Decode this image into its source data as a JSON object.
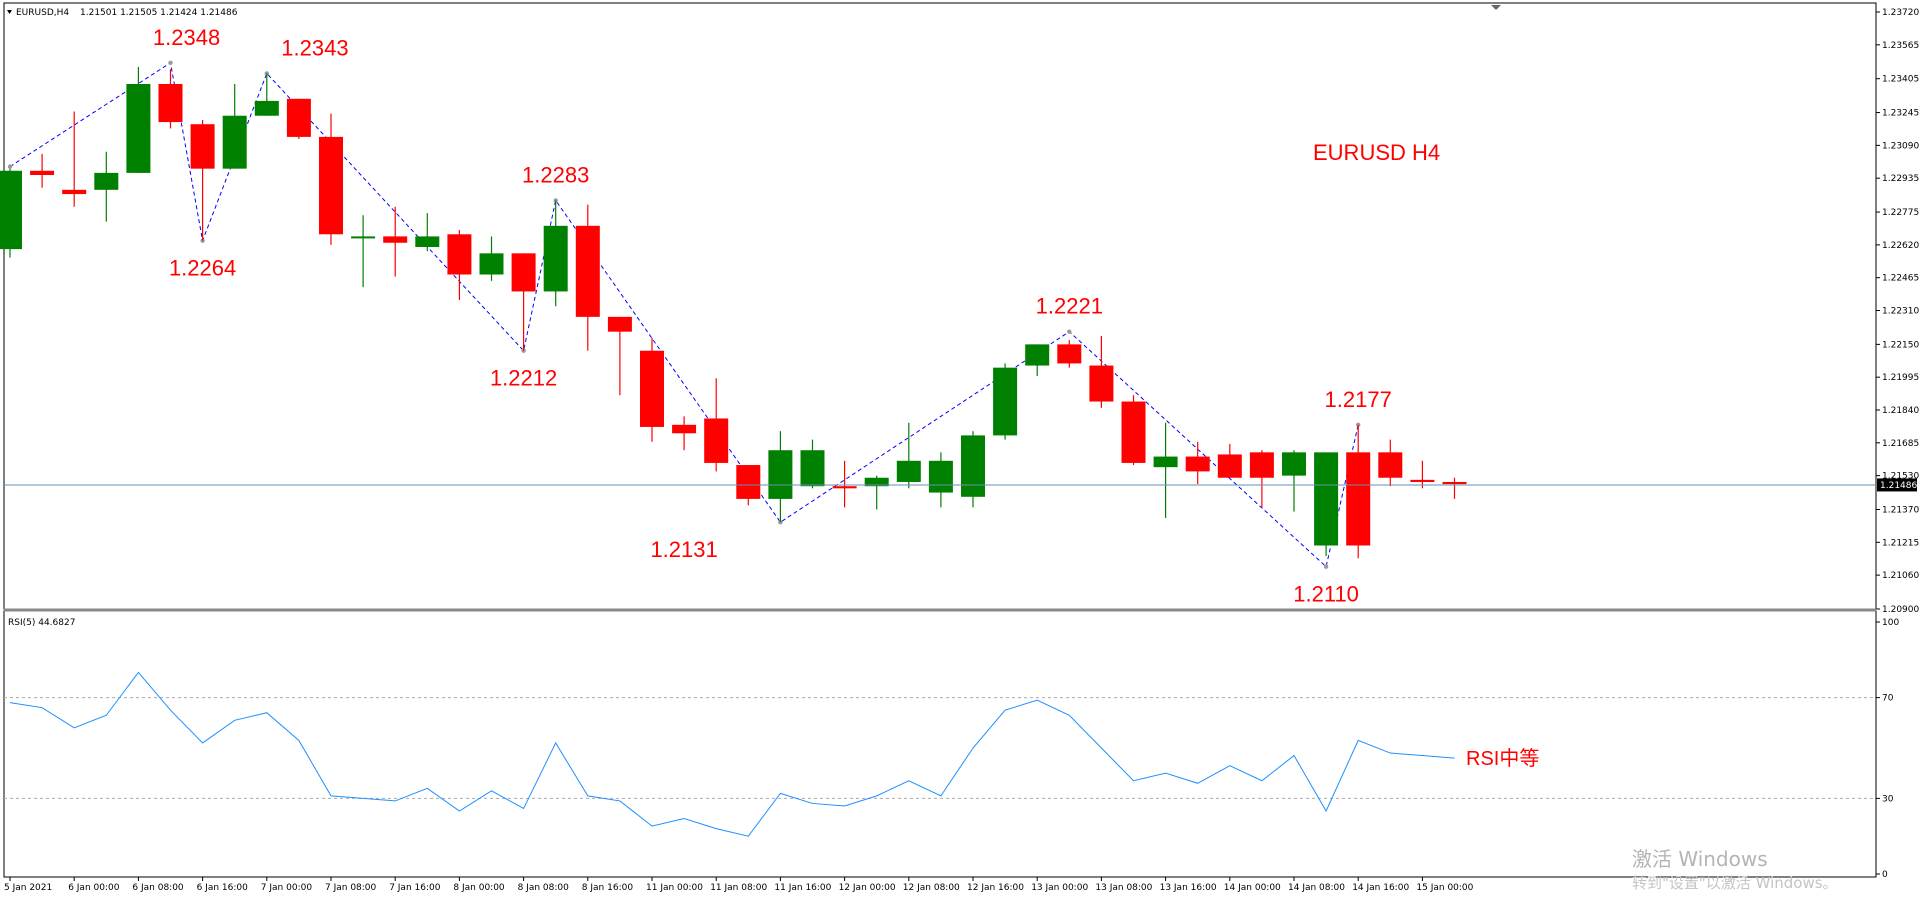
{
  "header": {
    "symbol": "EURUSD,H4",
    "ohlc": "1.21501 1.21505 1.21424 1.21486"
  },
  "price_tag": "1.21486",
  "rsi_header": "RSI(5) 44.6827",
  "watermark": {
    "line1": "激活 Windows",
    "line2": "转到\"设置\"以激活 Windows。"
  },
  "colors": {
    "bull": "#008000",
    "bear": "#ff0000",
    "zigzag": "#0000ff",
    "rsi": "#1e90ff",
    "annotation": "#ff0000",
    "price_line": "#6a8fb0"
  },
  "chart_data": [
    {
      "type": "candlestick",
      "title": "EURUSD H4",
      "ylim": [
        1.209,
        1.2372
      ],
      "y_ticks": [
        "1.23720",
        "1.23565",
        "1.23405",
        "1.23245",
        "1.23090",
        "1.22935",
        "1.22775",
        "1.22620",
        "1.22465",
        "1.22310",
        "1.22150",
        "1.21995",
        "1.21840",
        "1.21685",
        "1.21530",
        "1.21370",
        "1.21215",
        "1.21060",
        "1.20900"
      ],
      "x_labels": [
        "5 Jan 2021",
        "6 Jan 00:00",
        "6 Jan 08:00",
        "6 Jan 16:00",
        "7 Jan 00:00",
        "7 Jan 08:00",
        "7 Jan 16:00",
        "8 Jan 00:00",
        "8 Jan 08:00",
        "8 Jan 16:00",
        "11 Jan 00:00",
        "11 Jan 08:00",
        "11 Jan 16:00",
        "12 Jan 00:00",
        "12 Jan 08:00",
        "12 Jan 16:00",
        "13 Jan 00:00",
        "13 Jan 08:00",
        "13 Jan 16:00",
        "14 Jan 00:00",
        "14 Jan 08:00",
        "14 Jan 16:00",
        "15 Jan 00:00"
      ],
      "current_price": 1.21486,
      "candles": [
        {
          "o": 1.226,
          "h": 1.2298,
          "l": 1.2256,
          "c": 1.2297
        },
        {
          "o": 1.2297,
          "h": 1.2305,
          "l": 1.2289,
          "c": 1.2295
        },
        {
          "o": 1.2288,
          "h": 1.2325,
          "l": 1.228,
          "c": 1.2286
        },
        {
          "o": 1.2288,
          "h": 1.2306,
          "l": 1.2273,
          "c": 1.2296
        },
        {
          "o": 1.2296,
          "h": 1.2346,
          "l": 1.2296,
          "c": 1.2338
        },
        {
          "o": 1.2338,
          "h": 1.2345,
          "l": 1.2317,
          "c": 1.232
        },
        {
          "o": 1.2319,
          "h": 1.2321,
          "l": 1.2264,
          "c": 1.2298
        },
        {
          "o": 1.2298,
          "h": 1.2338,
          "l": 1.2298,
          "c": 1.2323
        },
        {
          "o": 1.2323,
          "h": 1.2343,
          "l": 1.2323,
          "c": 1.233
        },
        {
          "o": 1.2331,
          "h": 1.2331,
          "l": 1.2312,
          "c": 1.2313
        },
        {
          "o": 1.2313,
          "h": 1.2324,
          "l": 1.2262,
          "c": 1.2267
        },
        {
          "o": 1.2266,
          "h": 1.2276,
          "l": 1.2242,
          "c": 1.2266
        },
        {
          "o": 1.2266,
          "h": 1.228,
          "l": 1.2247,
          "c": 1.2263
        },
        {
          "o": 1.2261,
          "h": 1.2277,
          "l": 1.2259,
          "c": 1.2266
        },
        {
          "o": 1.2267,
          "h": 1.2269,
          "l": 1.2236,
          "c": 1.2248
        },
        {
          "o": 1.2248,
          "h": 1.2266,
          "l": 1.2245,
          "c": 1.2258
        },
        {
          "o": 1.2258,
          "h": 1.2258,
          "l": 1.2212,
          "c": 1.224
        },
        {
          "o": 1.224,
          "h": 1.2283,
          "l": 1.2233,
          "c": 1.2271
        },
        {
          "o": 1.2271,
          "h": 1.2281,
          "l": 1.2212,
          "c": 1.2228
        },
        {
          "o": 1.2228,
          "h": 1.2228,
          "l": 1.2191,
          "c": 1.2221
        },
        {
          "o": 1.2212,
          "h": 1.2218,
          "l": 1.2169,
          "c": 1.2176
        },
        {
          "o": 1.2177,
          "h": 1.2181,
          "l": 1.2165,
          "c": 1.2173
        },
        {
          "o": 1.218,
          "h": 1.2199,
          "l": 1.2155,
          "c": 1.2159
        },
        {
          "o": 1.2158,
          "h": 1.2158,
          "l": 1.2139,
          "c": 1.2142
        },
        {
          "o": 1.2142,
          "h": 1.2174,
          "l": 1.2131,
          "c": 1.2165
        },
        {
          "o": 1.2148,
          "h": 1.217,
          "l": 1.2147,
          "c": 1.2165
        },
        {
          "o": 1.2148,
          "h": 1.216,
          "l": 1.2138,
          "c": 1.2147
        },
        {
          "o": 1.2148,
          "h": 1.2153,
          "l": 1.2137,
          "c": 1.2152
        },
        {
          "o": 1.215,
          "h": 1.2178,
          "l": 1.2147,
          "c": 1.216
        },
        {
          "o": 1.2145,
          "h": 1.2164,
          "l": 1.2138,
          "c": 1.216
        },
        {
          "o": 1.2143,
          "h": 1.2174,
          "l": 1.2138,
          "c": 1.2172
        },
        {
          "o": 1.2172,
          "h": 1.2206,
          "l": 1.217,
          "c": 1.2204
        },
        {
          "o": 1.2205,
          "h": 1.2215,
          "l": 1.22,
          "c": 1.2215
        },
        {
          "o": 1.2215,
          "h": 1.2217,
          "l": 1.2204,
          "c": 1.2206
        },
        {
          "o": 1.2205,
          "h": 1.2219,
          "l": 1.2185,
          "c": 1.2188
        },
        {
          "o": 1.2188,
          "h": 1.2191,
          "l": 1.2158,
          "c": 1.2159
        },
        {
          "o": 1.2157,
          "h": 1.2178,
          "l": 1.2133,
          "c": 1.2162
        },
        {
          "o": 1.2162,
          "h": 1.2169,
          "l": 1.2149,
          "c": 1.2155
        },
        {
          "o": 1.2163,
          "h": 1.2168,
          "l": 1.2152,
          "c": 1.2152
        },
        {
          "o": 1.2164,
          "h": 1.2165,
          "l": 1.2138,
          "c": 1.2152
        },
        {
          "o": 1.2153,
          "h": 1.2165,
          "l": 1.2136,
          "c": 1.2164
        },
        {
          "o": 1.212,
          "h": 1.2163,
          "l": 1.2115,
          "c": 1.2164
        },
        {
          "o": 1.2164,
          "h": 1.2177,
          "l": 1.2114,
          "c": 1.212
        },
        {
          "o": 1.2164,
          "h": 1.217,
          "l": 1.2148,
          "c": 1.2152
        },
        {
          "o": 1.2151,
          "h": 1.216,
          "l": 1.2147,
          "c": 1.215
        },
        {
          "o": 1.215,
          "h": 1.2152,
          "l": 1.2142,
          "c": 1.2149
        }
      ],
      "zigzag": [
        {
          "i": 0,
          "v": 1.2299
        },
        {
          "i": 5,
          "v": 1.2348
        },
        {
          "i": 6,
          "v": 1.2264
        },
        {
          "i": 8,
          "v": 1.2343
        },
        {
          "i": 16,
          "v": 1.2212
        },
        {
          "i": 17,
          "v": 1.2283
        },
        {
          "i": 24,
          "v": 1.2131
        },
        {
          "i": 33,
          "v": 1.2221
        },
        {
          "i": 41,
          "v": 1.211
        },
        {
          "i": 42,
          "v": 1.2177
        }
      ],
      "annotations": [
        {
          "text": "1.2348",
          "i": 5.5,
          "v": 1.2348,
          "pos": "above"
        },
        {
          "text": "1.2264",
          "i": 6,
          "v": 1.2264,
          "pos": "below"
        },
        {
          "text": "1.2343",
          "i": 9.5,
          "v": 1.2343,
          "pos": "above"
        },
        {
          "text": "1.2283",
          "i": 17,
          "v": 1.2283,
          "pos": "above"
        },
        {
          "text": "1.2212",
          "i": 16,
          "v": 1.2212,
          "pos": "below"
        },
        {
          "text": "1.2131",
          "i": 21,
          "v": 1.2131,
          "pos": "below"
        },
        {
          "text": "1.2221",
          "i": 33,
          "v": 1.2221,
          "pos": "above"
        },
        {
          "text": "1.2110",
          "i": 41,
          "v": 1.211,
          "pos": "below"
        },
        {
          "text": "1.2177",
          "i": 42,
          "v": 1.2177,
          "pos": "above"
        }
      ]
    },
    {
      "type": "line",
      "title": "RSI(5) 44.6827",
      "ylim": [
        0,
        100
      ],
      "y_ticks": [
        "100",
        "70",
        "30",
        "0"
      ],
      "levels": [
        70,
        30
      ],
      "label": "RSI中等",
      "values": [
        68,
        66,
        58,
        63,
        80,
        65,
        52,
        61,
        64,
        53,
        31,
        30,
        29,
        34,
        25,
        33,
        26,
        52,
        31,
        29,
        19,
        22,
        18,
        15,
        32,
        28,
        27,
        31,
        37,
        31,
        50,
        65,
        69,
        63,
        50,
        37,
        40,
        36,
        43,
        37,
        47,
        25,
        53,
        48,
        47,
        46
      ]
    }
  ]
}
